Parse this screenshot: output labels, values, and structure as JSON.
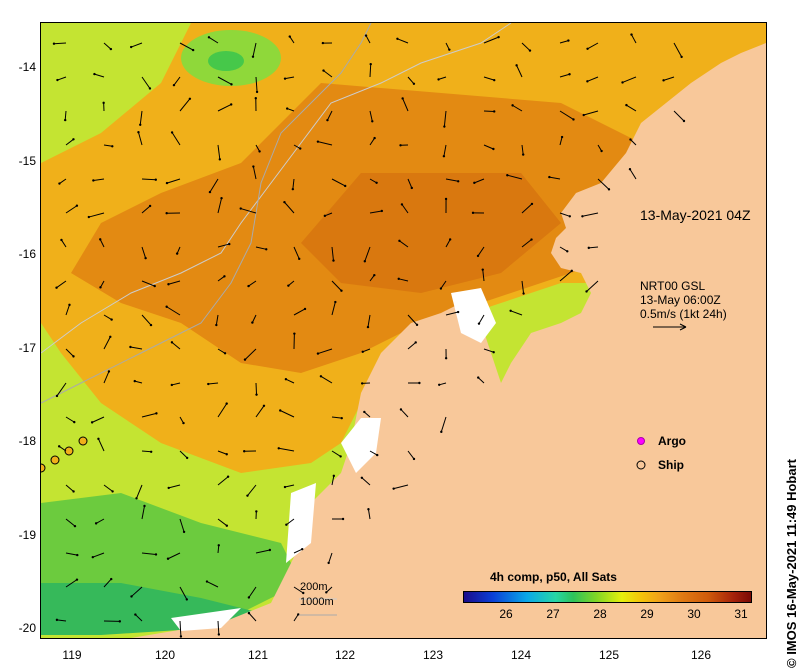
{
  "map": {
    "timestamp": "13-May-2021 04Z",
    "current_info": {
      "line1": "NRT00 GSL",
      "line2": "13-May 06:00Z",
      "line3": "0.5m/s (1kt 24h)"
    },
    "legend": {
      "argo_label": "Argo",
      "ship_label": "Ship"
    },
    "scale_labels": {
      "depth1": "200m",
      "depth2": "1000m"
    },
    "colorbar": {
      "title": "4h comp, p50, All Sats",
      "ticks": [
        "26",
        "27",
        "28",
        "29",
        "30",
        "31"
      ]
    },
    "credit": "© IMOS 16-May-2021 11:49 Hobart",
    "lat_ticks": [
      "-14",
      "-15",
      "-16",
      "-17",
      "-18",
      "-19",
      "-20"
    ],
    "lon_ticks": [
      "119",
      "120",
      "121",
      "122",
      "123",
      "124",
      "125",
      "126"
    ],
    "colors": {
      "land": "#f8c89a",
      "warm": "#e08a10",
      "mid": "#f0b41a",
      "cool": "#cde82a",
      "cold": "#46c84a"
    }
  }
}
